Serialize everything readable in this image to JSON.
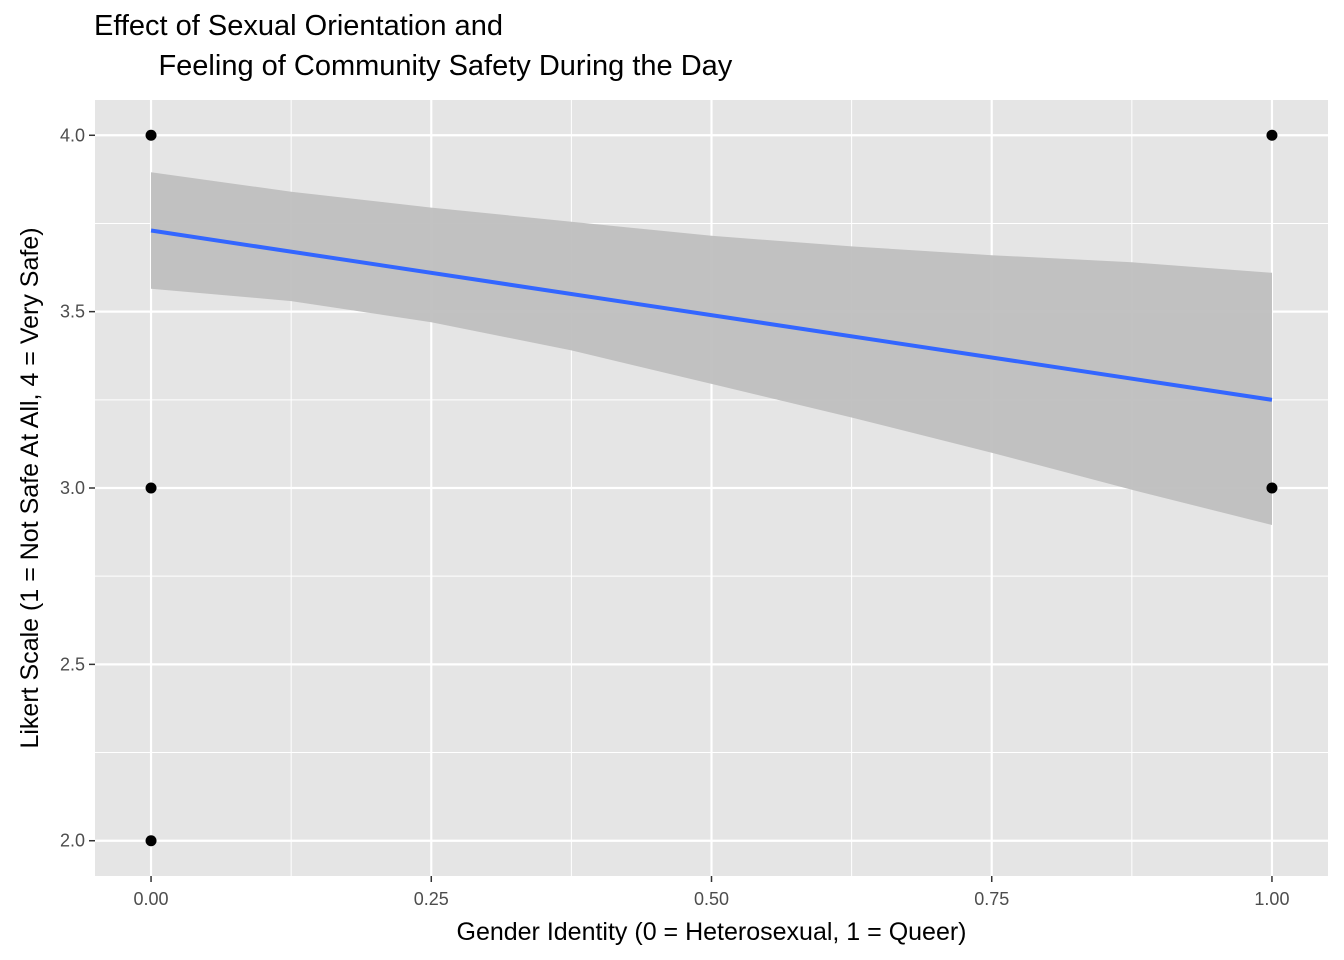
{
  "chart_data": {
    "type": "scatter",
    "title_lines": [
      "Effect of Sexual Orientation and",
      "        Feeling of Community Safety During the Day"
    ],
    "xlabel": "Gender Identity (0 = Heterosexual, 1 = Queer)",
    "ylabel": "Likert Scale (1 = Not Safe At All, 4 = Very Safe)",
    "xlim": [
      -0.05,
      1.05
    ],
    "ylim": [
      1.9,
      4.1
    ],
    "x_ticks": [
      0,
      0.25,
      0.5,
      0.75,
      1
    ],
    "x_tick_labels": [
      "0.00",
      "0.25",
      "0.50",
      "0.75",
      "1.00"
    ],
    "y_ticks": [
      2,
      2.5,
      3,
      3.5,
      4
    ],
    "y_tick_labels": [
      "2.0",
      "2.5",
      "3.0",
      "3.5",
      "4.0"
    ],
    "points": [
      {
        "x": 0,
        "y": 4
      },
      {
        "x": 0,
        "y": 3
      },
      {
        "x": 0,
        "y": 2
      },
      {
        "x": 1,
        "y": 4
      },
      {
        "x": 1,
        "y": 3
      }
    ],
    "fit_line": {
      "x": [
        0,
        1
      ],
      "y": [
        3.73,
        3.25
      ]
    },
    "confidence_band": {
      "x": [
        0,
        0.125,
        0.25,
        0.375,
        0.5,
        0.625,
        0.75,
        0.875,
        1
      ],
      "upper": [
        3.895,
        3.84,
        3.795,
        3.755,
        3.715,
        3.685,
        3.66,
        3.64,
        3.61
      ],
      "lower": [
        3.565,
        3.53,
        3.47,
        3.39,
        3.295,
        3.2,
        3.1,
        2.995,
        2.895
      ]
    },
    "grid": true,
    "colors": {
      "panel": "#e5e5e5",
      "grid": "#ffffff",
      "line": "#3366ff",
      "band": "#bfbfbf",
      "point": "#000000"
    }
  }
}
